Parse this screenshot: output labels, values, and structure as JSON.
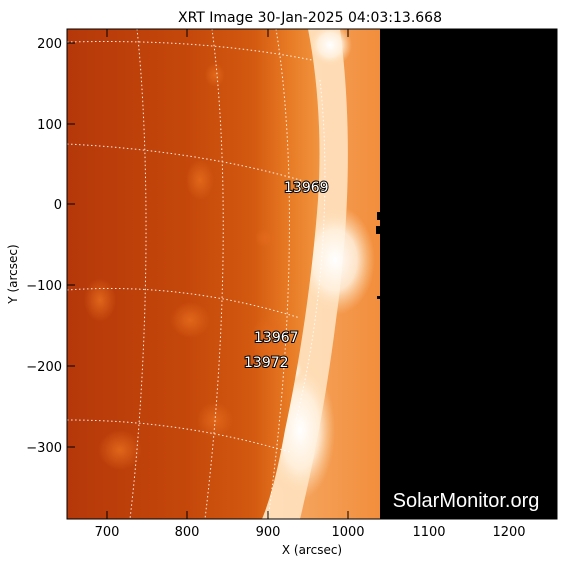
{
  "title": "XRT Image 30-Jan-2025 04:03:13.668",
  "axes": {
    "xlabel": "X (arcsec)",
    "ylabel": "Y (arcsec)",
    "x_ticks": [
      "700",
      "800",
      "900",
      "1000",
      "1100",
      "1200"
    ],
    "y_ticks": [
      "200",
      "100",
      "0",
      "−100",
      "−200",
      "−300"
    ]
  },
  "active_regions": [
    {
      "id": "13969"
    },
    {
      "id": "13967"
    },
    {
      "id": "13972"
    }
  ],
  "watermark": "SolarMonitor.org",
  "colors": {
    "disk_dark": "#b83a08",
    "disk_mid": "#d0560c",
    "limb_bright": "#ffe6c8",
    "corona": "#f7a55a",
    "offdata": "#000000",
    "grid": "#ffffff"
  }
}
